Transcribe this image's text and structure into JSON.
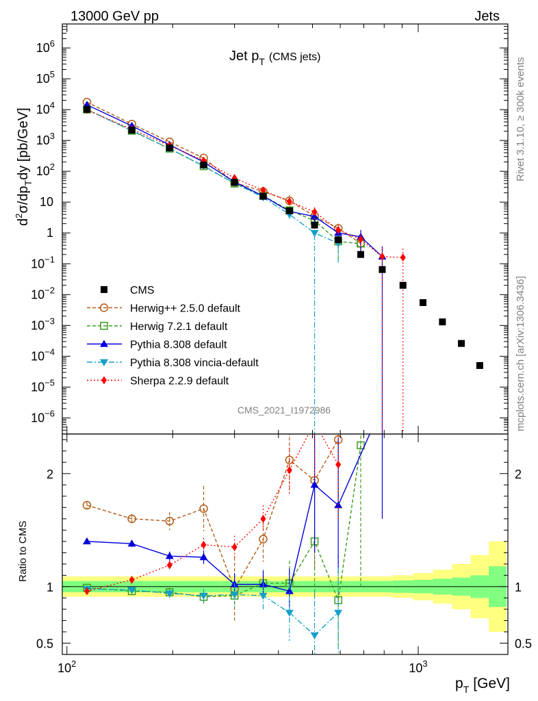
{
  "header": {
    "left": "13000 GeV pp",
    "right": "Jets"
  },
  "side_text": {
    "rivet": "Rivet 3.1.10, ≥ 300k events",
    "mcplots": "mcplots.cern.ch [arXiv:1306.3436]"
  },
  "chart_data": {
    "type": "scatter",
    "title": "Jet p",
    "title_sub": "T",
    "title_suffix": "(CMS jets)",
    "analysis_id": "CMS_2021_I1972986",
    "xscale": "log",
    "xlim": [
      97,
      1800
    ],
    "x_tick_labels": [
      {
        "value": 100,
        "base": "10",
        "exp": "2"
      },
      {
        "value": 1000,
        "base": "10",
        "exp": "3"
      }
    ],
    "xlabel": "p",
    "xlabel_sub": "T",
    "xlabel_unit": "[GeV]",
    "main": {
      "yscale": "log",
      "ylim": [
        3e-07,
        6000000.0
      ],
      "ylabel": "d²σ/dp_T dy [pb/GeV]",
      "ylabel_parts": {
        "d": "d",
        "two": "2",
        "sigma": "σ/dp",
        "T": "T",
        "dy": "dy [pb/GeV]"
      },
      "y_tick_labels": [
        {
          "value": 1000000.0,
          "base": "10",
          "exp": "6"
        },
        {
          "value": 100000.0,
          "base": "10",
          "exp": "5"
        },
        {
          "value": 10000.0,
          "base": "10",
          "exp": "4"
        },
        {
          "value": 1000.0,
          "base": "10",
          "exp": "3"
        },
        {
          "value": 100.0,
          "base": "10",
          "exp": "2"
        },
        {
          "value": 10,
          "base": "10",
          "exp": ""
        },
        {
          "value": 1,
          "base": "1",
          "exp": ""
        },
        {
          "value": 0.1,
          "base": "10",
          "exp": "−1"
        },
        {
          "value": 0.01,
          "base": "10",
          "exp": "−2"
        },
        {
          "value": 0.001,
          "base": "10",
          "exp": "−3"
        },
        {
          "value": 0.0001,
          "base": "10",
          "exp": "−4"
        },
        {
          "value": 1e-05,
          "base": "10",
          "exp": "−5"
        },
        {
          "value": 1e-06,
          "base": "10",
          "exp": "−6"
        }
      ]
    },
    "ratio": {
      "ylabel": "Ratio to CMS",
      "ylim": [
        0.4,
        2.35
      ],
      "y_tick_labels": [
        {
          "value": 2,
          "label": "2"
        },
        {
          "value": 1,
          "label": "1"
        },
        {
          "value": 0.5,
          "label": "0.5"
        }
      ],
      "band_edges": [
        97,
        133,
        174,
        220,
        272,
        330,
        395,
        468,
        548,
        638,
        737,
        846,
        967,
        1101,
        1248,
        1410,
        1588,
        1784
      ],
      "band_green_half": [
        0.05,
        0.05,
        0.05,
        0.05,
        0.05,
        0.05,
        0.05,
        0.05,
        0.05,
        0.05,
        0.05,
        0.055,
        0.06,
        0.07,
        0.08,
        0.1,
        0.18
      ],
      "band_yellow_half": [
        0.09,
        0.09,
        0.09,
        0.09,
        0.09,
        0.09,
        0.09,
        0.09,
        0.09,
        0.09,
        0.09,
        0.1,
        0.12,
        0.15,
        0.2,
        0.28,
        0.4
      ]
    },
    "data": {
      "name": "CMS",
      "color": "#000000",
      "x": [
        114,
        153,
        196,
        245,
        300,
        362,
        430,
        507,
        592,
        686,
        790,
        905,
        1032,
        1172,
        1327,
        1497
      ],
      "y": [
        10200,
        2150,
        570,
        160,
        44,
        15.5,
        5.2,
        1.8,
        0.6,
        0.2,
        0.065,
        0.02,
        0.0055,
        0.0013,
        0.00026,
        5e-05
      ]
    },
    "series": [
      {
        "name": "Herwig++ 2.5.0 default",
        "color": "#b05a14",
        "marker": "circle-open",
        "dash": "5,3",
        "x": [
          114,
          153,
          196,
          245,
          300,
          362,
          430,
          507,
          592
        ],
        "ratio": [
          1.72,
          1.6,
          1.58,
          1.69,
          0.98,
          1.42,
          2.12,
          1.94,
          2.3
        ],
        "ratio_err": [
          0.03,
          0.04,
          0.08,
          0.2,
          0.28,
          0.2,
          0.3,
          0.8,
          0.5
        ]
      },
      {
        "name": "Herwig 7.2.1 default",
        "color": "#3c9a1e",
        "marker": "square-open",
        "dash": "5,3",
        "x": [
          114,
          153,
          196,
          245,
          300,
          362,
          430,
          507,
          592,
          686
        ],
        "ratio": [
          0.99,
          0.96,
          0.95,
          0.91,
          0.92,
          1.03,
          1.03,
          1.4,
          0.88,
          2.25
        ],
        "ratio_err": [
          0.02,
          0.03,
          0.04,
          0.06,
          0.1,
          0.12,
          0.2,
          0.5,
          0.4,
          1.25
        ]
      },
      {
        "name": "Pythia 8.308 default",
        "color": "#0000dc",
        "marker": "triangle-up",
        "dash": "",
        "x": [
          114,
          153,
          196,
          245,
          300,
          362,
          430,
          507,
          592,
          790
        ],
        "ratio": [
          1.4,
          1.38,
          1.27,
          1.26,
          1.02,
          1.02,
          0.96,
          1.9,
          1.72,
          2.6
        ],
        "ratio_err": [
          0.02,
          0.03,
          0.04,
          0.06,
          0.1,
          0.12,
          0.2,
          0.6,
          0.6,
          1.0
        ]
      },
      {
        "name": "Pythia 8.308 vincia-default",
        "color": "#14a0c8",
        "marker": "triangle-down",
        "dash": "8,3,2,3",
        "x": [
          114,
          153,
          196,
          245,
          300,
          362,
          430,
          507,
          592
        ],
        "ratio": [
          0.98,
          0.97,
          0.94,
          0.92,
          0.93,
          0.92,
          0.77,
          0.57,
          0.77
        ],
        "ratio_err": [
          0.02,
          0.03,
          0.04,
          0.06,
          0.1,
          0.12,
          0.25,
          0.4,
          0.4
        ]
      },
      {
        "name": "Sherpa 2.2.9 default",
        "color": "#ff0000",
        "marker": "diamond",
        "dash": "2,3",
        "x": [
          114,
          153,
          196,
          245,
          300,
          362,
          430,
          507,
          592
        ],
        "ratio": [
          0.96,
          1.06,
          1.19,
          1.37,
          1.35,
          1.6,
          2.03,
          2.45,
          2.08
        ],
        "ratio_err": [
          0.02,
          0.03,
          0.04,
          0.06,
          0.1,
          0.12,
          0.2,
          0.5,
          0.5
        ]
      }
    ],
    "main_mc": [
      {
        "x": [
          114,
          153,
          196,
          245,
          300,
          362,
          430,
          507,
          592,
          686
        ],
        "y": [
          17500,
          3400,
          900,
          270,
          43,
          22,
          11,
          3.5,
          1.4,
          0.46
        ],
        "yerr_lo": [
          0,
          0,
          0,
          0,
          0,
          3,
          4,
          2,
          0.6,
          0.3
        ],
        "yerr_hi": [
          0,
          0,
          0,
          0,
          0,
          3,
          6,
          2,
          0.6,
          0.3
        ]
      },
      {
        "x": [
          114,
          153,
          196,
          245,
          300,
          362,
          430,
          507,
          592,
          686
        ],
        "y": [
          10100,
          2060,
          540,
          146,
          40,
          16,
          5.4,
          2.5,
          0.53,
          0.45
        ],
        "yerr_lo": [
          0,
          0,
          0,
          0,
          0,
          2,
          1.5,
          1.5,
          0.4,
          0.3
        ],
        "yerr_hi": [
          0,
          0,
          0,
          0,
          0,
          2,
          1.5,
          1.5,
          0.4,
          0.3
        ]
      },
      {
        "x": [
          114,
          153,
          196,
          245,
          300,
          362,
          430,
          507,
          592,
          686,
          790
        ],
        "y": [
          14300,
          2970,
          720,
          200,
          45,
          15.8,
          5.0,
          3.4,
          1.0,
          0.75,
          0.17
        ],
        "yerr_lo": [
          0,
          0,
          0,
          0,
          0,
          2,
          1.5,
          2,
          0.4,
          0.5,
          0.17
        ],
        "yerr_hi": [
          0,
          0,
          0,
          0,
          0,
          2,
          1.5,
          2,
          0.4,
          0.5,
          0.2
        ]
      },
      {
        "x": [
          114,
          153,
          196,
          245,
          300,
          362,
          430,
          507,
          592
        ],
        "y": [
          10000,
          2100,
          540,
          148,
          41,
          14.2,
          4.0,
          1.0,
          0.46
        ],
        "yerr_lo": [
          0,
          0,
          0,
          0,
          0,
          2,
          1.5,
          1.0,
          0.35
        ],
        "yerr_hi": [
          0,
          0,
          0,
          0,
          0,
          2,
          1.5,
          1.0,
          0.35
        ]
      },
      {
        "x": [
          114,
          153,
          196,
          245,
          300,
          362,
          430,
          507,
          592,
          686,
          790,
          905
        ],
        "y": [
          9800,
          2280,
          680,
          220,
          60,
          24,
          10.5,
          4.8,
          1.25,
          0.62,
          0.17,
          0.16
        ],
        "yerr_lo": [
          0,
          0,
          0,
          0,
          0,
          3,
          2,
          2,
          0.4,
          0.3,
          0.17,
          0.16
        ],
        "yerr_hi": [
          0,
          0,
          0,
          0,
          0,
          3,
          2,
          2,
          0.4,
          0.3,
          0.15,
          0.15
        ]
      }
    ]
  }
}
